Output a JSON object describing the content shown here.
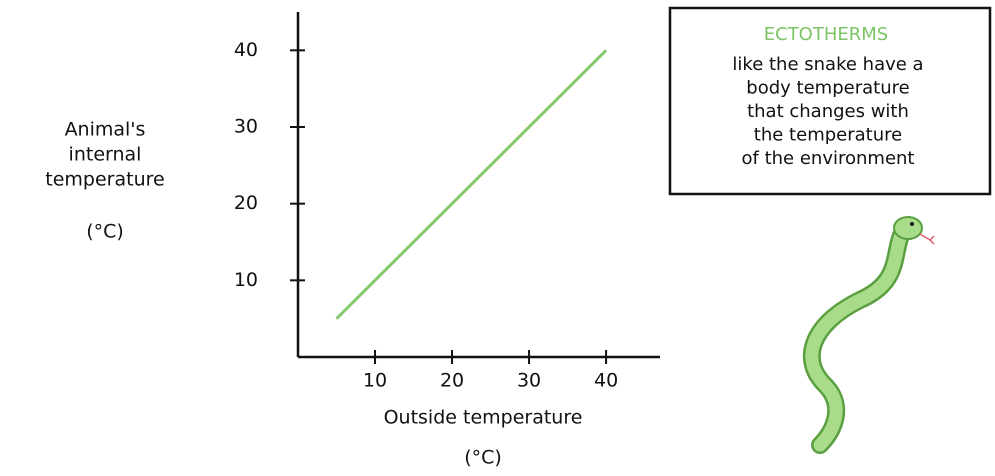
{
  "chart_data": {
    "type": "line",
    "ylabel": [
      "Animal's",
      "internal",
      "temperature",
      "(°C)"
    ],
    "xlabel": [
      "Outside temperature",
      "(°C)"
    ],
    "x": [
      5,
      40
    ],
    "series": [
      {
        "color": "#86c96b",
        "values": [
          5,
          40
        ]
      }
    ],
    "xlim": [
      0,
      47
    ],
    "ylim": [
      0,
      45
    ],
    "xticks": [
      10,
      20,
      30,
      40
    ],
    "yticks": [
      10,
      20,
      30,
      40
    ],
    "annotation": {
      "title": "ECTOTHERMS",
      "lines": [
        "like the snake have a",
        "body temperature",
        "that changes with",
        "the temperature",
        "of the environment"
      ]
    }
  }
}
